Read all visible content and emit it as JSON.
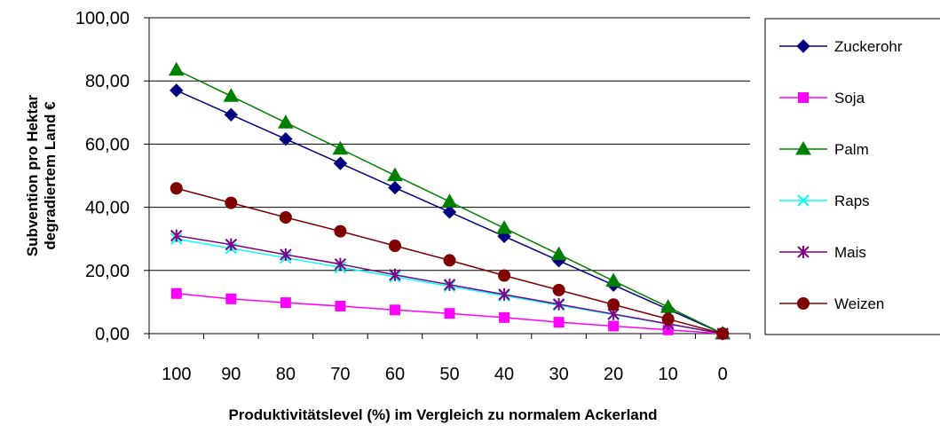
{
  "chart_data": {
    "type": "line",
    "title": "",
    "xlabel": "Produktivitätslevel (%) im Vergleich zu normalem Ackerland",
    "ylabel_line1": "Subvention pro Hektar",
    "ylabel_line2": "degradiertem Land €",
    "x": [
      "100",
      "90",
      "80",
      "70",
      "60",
      "50",
      "40",
      "30",
      "20",
      "10",
      "0"
    ],
    "yticks": [
      "0,00",
      "20,00",
      "40,00",
      "60,00",
      "80,00",
      "100,00"
    ],
    "ylim": [
      0,
      100
    ],
    "grid": true,
    "legend_position": "right",
    "series": [
      {
        "name": "Zuckerohr",
        "color": "#000080",
        "marker": "diamond",
        "values": [
          77,
          69.3,
          61.6,
          53.9,
          46.2,
          38.5,
          30.8,
          23.1,
          15.4,
          7.7,
          0
        ]
      },
      {
        "name": "Soja",
        "color": "#ff00ff",
        "marker": "square",
        "values": [
          12.7,
          11,
          9.8,
          8.7,
          7.5,
          6.4,
          5.1,
          3.6,
          2.4,
          1.2,
          0
        ]
      },
      {
        "name": "Palm",
        "color": "#008000",
        "marker": "triangle",
        "values": [
          83.5,
          75.2,
          66.8,
          58.5,
          50.1,
          41.8,
          33.4,
          25.1,
          16.7,
          8.4,
          0
        ]
      },
      {
        "name": "Raps",
        "color": "#00ffff",
        "marker": "x",
        "values": [
          30,
          27,
          24,
          21,
          18,
          15,
          12,
          9,
          6,
          3,
          0
        ]
      },
      {
        "name": "Mais",
        "color": "#800080",
        "marker": "asterisk",
        "values": [
          31,
          28.2,
          25,
          22,
          18.6,
          15.5,
          12.4,
          9.3,
          6.2,
          3.1,
          0
        ]
      },
      {
        "name": "Weizen",
        "color": "#800000",
        "marker": "circle",
        "values": [
          46,
          41.4,
          36.8,
          32.4,
          27.8,
          23.2,
          18.4,
          13.8,
          9.2,
          4.6,
          0
        ]
      }
    ]
  }
}
